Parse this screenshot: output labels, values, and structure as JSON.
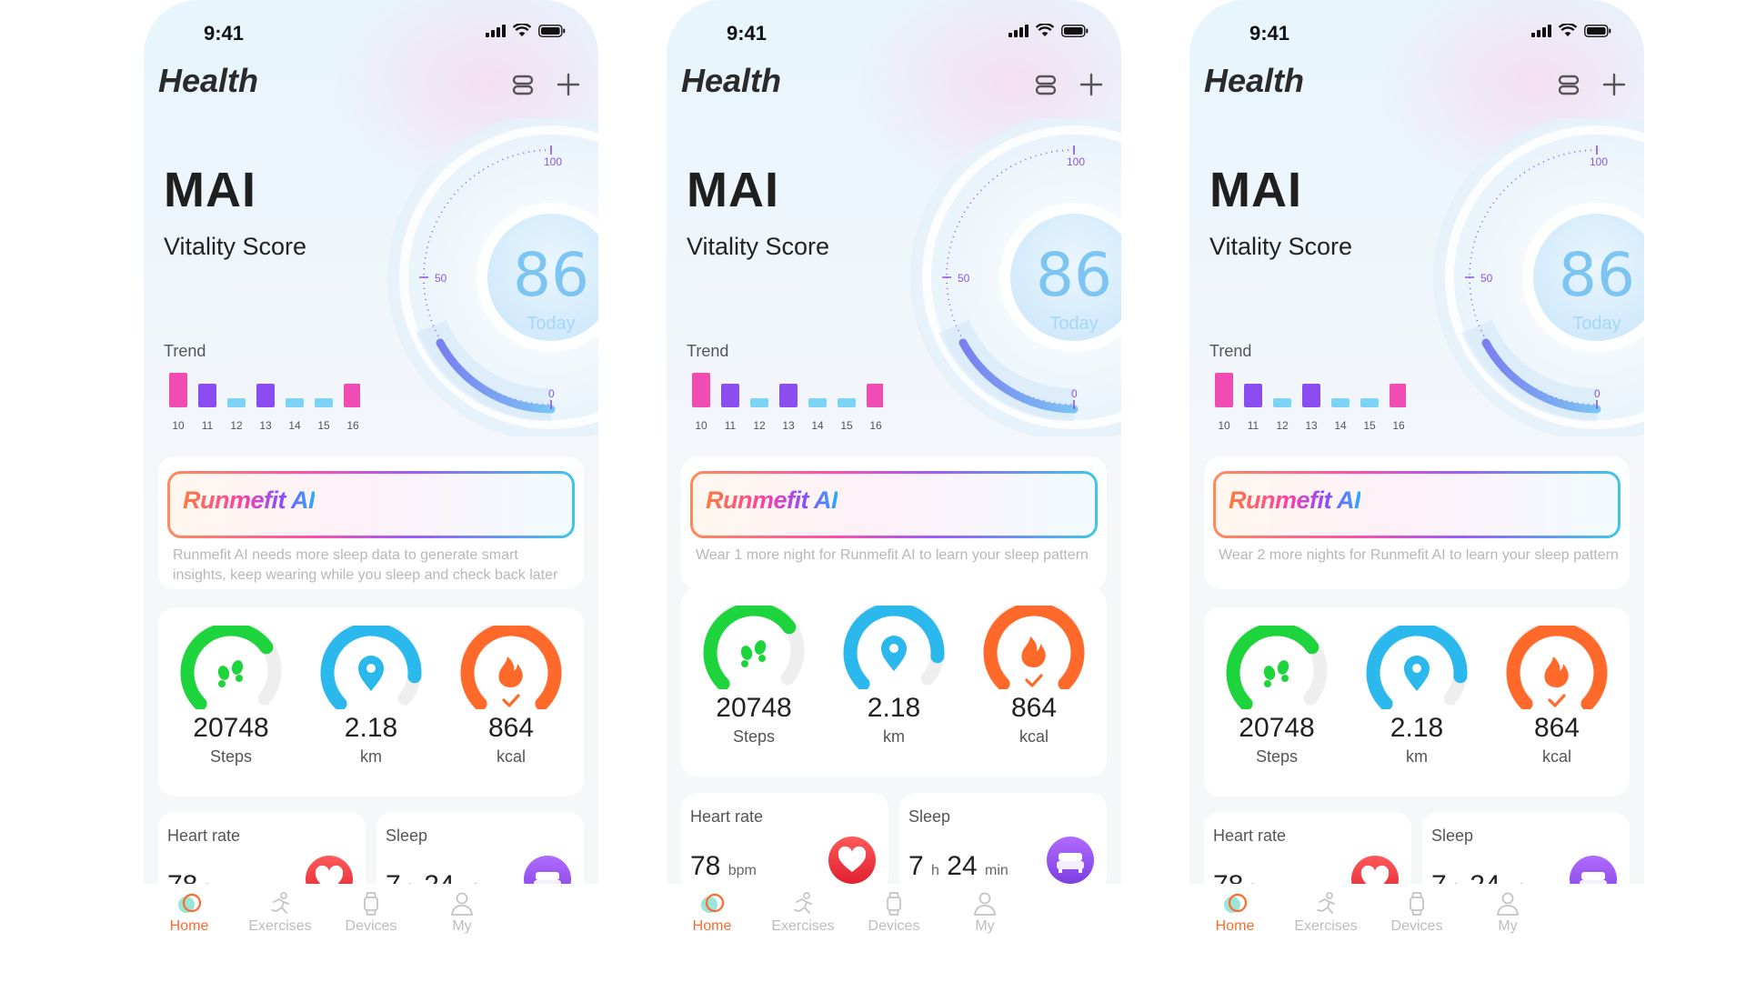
{
  "status": {
    "time": "9:41"
  },
  "header": {
    "title": "Health"
  },
  "vitality": {
    "brand": "MAI",
    "label": "Vitality Score",
    "score": "86",
    "score_sub": "Today",
    "gauge_ticks": [
      "100",
      "50",
      "0"
    ],
    "score_level": 0.86
  },
  "trend": {
    "label": "Trend",
    "days": [
      "10",
      "11",
      "12",
      "13",
      "14",
      "15",
      "16"
    ],
    "levels": [
      3,
      2,
      1,
      2,
      1,
      1,
      2
    ],
    "colors": [
      "#f14bb4",
      "#8b4df2",
      "#7dd3f5",
      "#8b4df2",
      "#7dd3f5",
      "#7dd3f5",
      "#f14bb4"
    ]
  },
  "ai": {
    "logo": "Runmefit AI",
    "messages": [
      "Runmefit AI needs more sleep data to generate smart insights, keep wearing while you sleep and check back later",
      "Wear 1 more night for Runmefit AI to learn your sleep pattern",
      "Wear 2 more nights for Runmefit AI to learn your sleep pattern"
    ]
  },
  "metrics": {
    "steps": {
      "value": "20748",
      "unit": "Steps",
      "color": "#1ed43c",
      "progress": 0.7
    },
    "distance": {
      "value": "2.18",
      "unit": "km",
      "color": "#2bb8ec",
      "progress": 0.85
    },
    "calories": {
      "value": "864",
      "unit": "kcal",
      "color": "#ff6a2b",
      "progress": 1.0
    }
  },
  "heart": {
    "title": "Heart rate",
    "value": "78",
    "unit": "bpm"
  },
  "sleep": {
    "title": "Sleep",
    "hours": "7",
    "h": "h",
    "minutes": "24",
    "min": "min"
  },
  "tabs": [
    {
      "label": "Home",
      "icon": "home-icon"
    },
    {
      "label": "Exercises",
      "icon": "exercises-icon"
    },
    {
      "label": "Devices",
      "icon": "watch-icon"
    },
    {
      "label": "My",
      "icon": "person-icon"
    }
  ],
  "colors": {
    "accent": "#ff6a2b",
    "score_blue": "#7cc4f2",
    "gauge_purple": "#8b55e6"
  }
}
